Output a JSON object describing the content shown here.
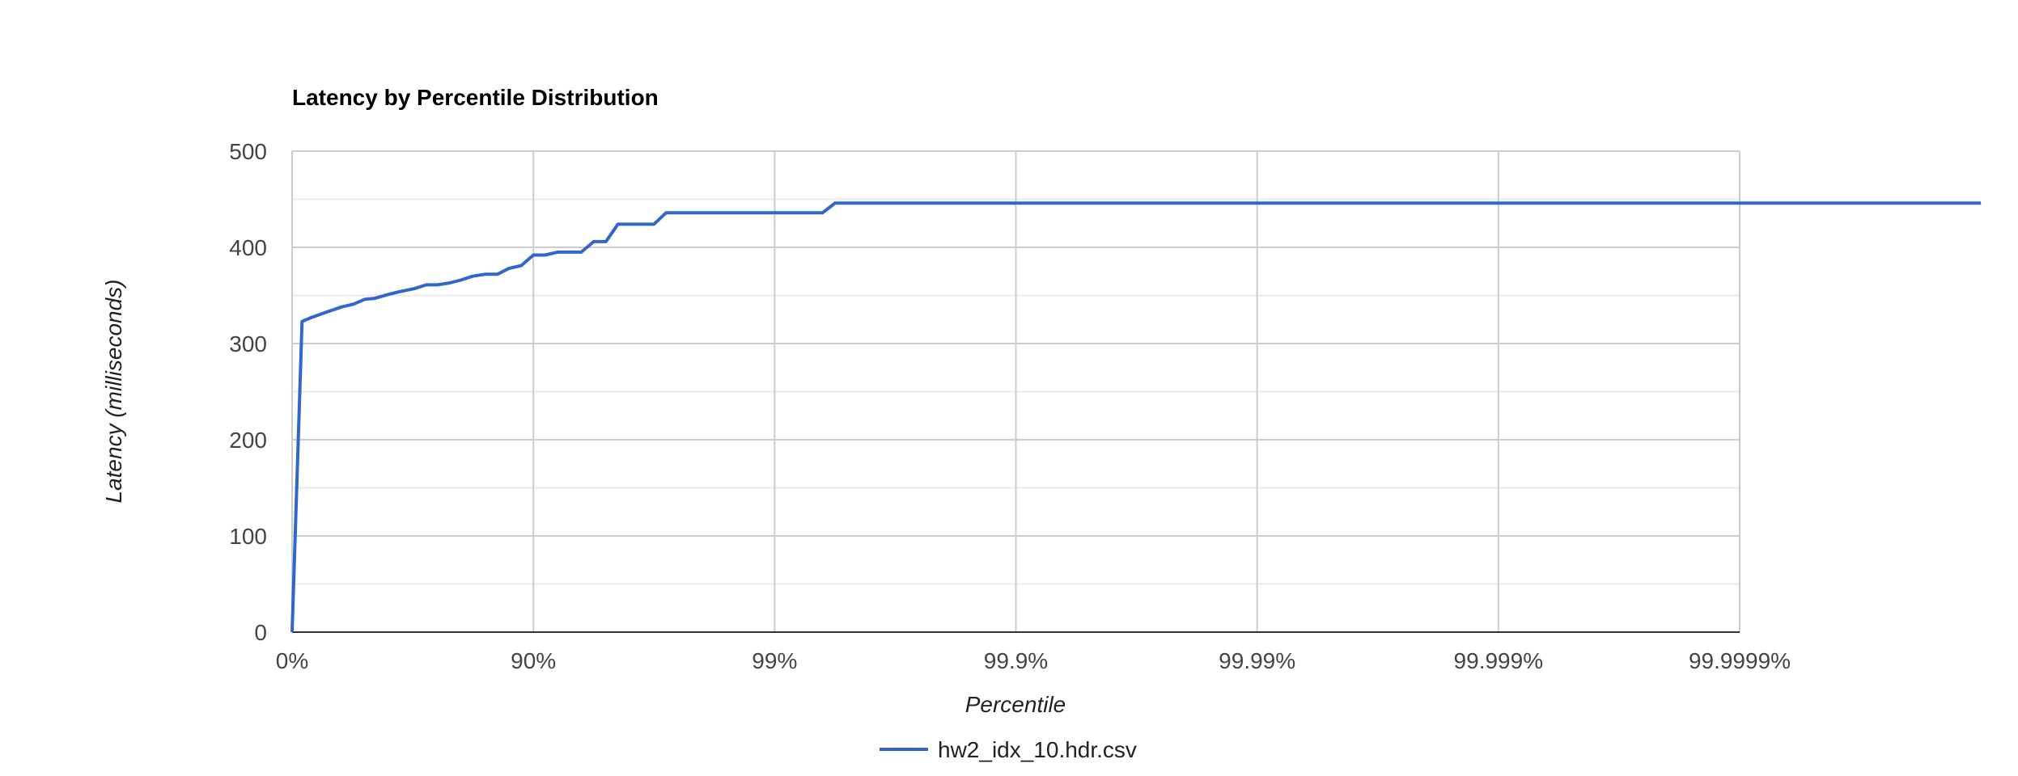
{
  "chart_data": {
    "type": "line",
    "title": "Latency by Percentile Distribution",
    "xlabel": "Percentile",
    "ylabel": "Latency (milliseconds)",
    "x_scale": "log-inverse (1 / (1 - percentile))",
    "xlim": [
      1,
      10000000
    ],
    "ylim": [
      0,
      500
    ],
    "y_ticks": [
      0,
      100,
      200,
      300,
      400,
      500
    ],
    "x_ticks": [
      {
        "value": 1,
        "label": "0%"
      },
      {
        "value": 10,
        "label": "90%"
      },
      {
        "value": 100,
        "label": "99%"
      },
      {
        "value": 1000,
        "label": "99.9%"
      },
      {
        "value": 10000,
        "label": "99.99%"
      },
      {
        "value": 100000,
        "label": "99.999%"
      },
      {
        "value": 1000000,
        "label": "99.9999%"
      }
    ],
    "grid": true,
    "legend_position": "bottom",
    "series": [
      {
        "name": "hw2_idx_10.hdr.csv",
        "color": "#3366cc",
        "x": [
          1,
          1.1,
          1.2,
          1.4,
          1.6,
          1.8,
          2.0,
          2.2,
          2.5,
          2.8,
          3.2,
          3.6,
          4.0,
          4.5,
          5.0,
          5.6,
          6.3,
          7.1,
          7.9,
          8.9,
          10,
          11.2,
          12.6,
          14.1,
          15.8,
          17.8,
          20,
          22.4,
          25.1,
          28.2,
          31.6,
          35.5,
          39.8,
          44.7,
          50.1,
          56.2,
          63.1,
          66.8,
          100,
          141,
          158,
          178,
          10000000
        ],
        "y": [
          0,
          323,
          327,
          333,
          338,
          341,
          346,
          347,
          351,
          354,
          357,
          361,
          361,
          363,
          366,
          370,
          372,
          372,
          378,
          381,
          392,
          392,
          395,
          395,
          395,
          406,
          406,
          424,
          424,
          424,
          424,
          436,
          436,
          436,
          436,
          436,
          436,
          436,
          436,
          436,
          436,
          446,
          446
        ]
      }
    ]
  }
}
